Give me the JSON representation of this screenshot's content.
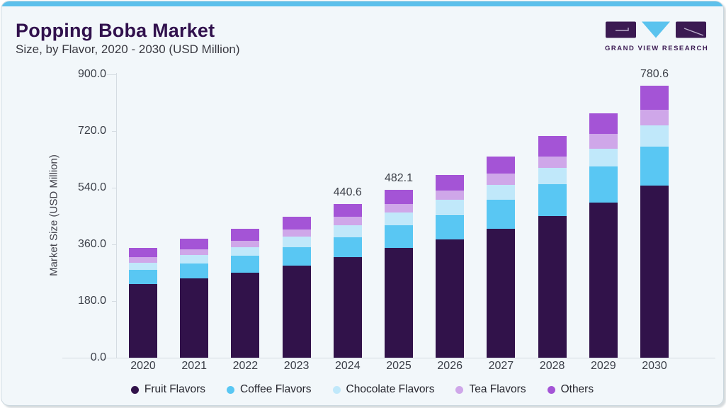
{
  "header": {
    "title": "Popping Boba Market",
    "subtitle": "Size, by Flavor, 2020 - 2030 (USD Million)",
    "logo_text": "GRAND VIEW RESEARCH"
  },
  "colors": {
    "accent_strip": "#5cc0eb",
    "card_bg": "#f2f7fa",
    "title_text": "#31114d",
    "body_text": "#3b3f48",
    "axis_line": "#d5dce2",
    "logo_purple": "#3b1a52",
    "logo_blue": "#5ac3ee"
  },
  "chart_data": {
    "type": "bar",
    "stacked": true,
    "title": "Popping Boba Market Size, by Flavor, 2020 - 2030 (USD Million)",
    "xlabel": "",
    "ylabel": "Market Size (USD Million)",
    "ylim": [
      0,
      900
    ],
    "y_ticks": [
      0,
      180,
      360,
      540,
      720,
      900
    ],
    "y_tick_labels": [
      "0.0",
      "180.0",
      "360.0",
      "540.0",
      "720.0",
      "900.0"
    ],
    "grid": false,
    "legend_position": "bottom",
    "categories": [
      "2020",
      "2021",
      "2022",
      "2023",
      "2024",
      "2025",
      "2026",
      "2027",
      "2028",
      "2029",
      "2030"
    ],
    "series": [
      {
        "name": "Fruit Flavors",
        "color": "#31124a",
        "values": [
          210.6,
          227.5,
          243.8,
          264.1,
          288.6,
          314.6,
          339.4,
          370.8,
          406.6,
          446.1,
          494.8
        ]
      },
      {
        "name": "Coffee Flavors",
        "color": "#59c7f3",
        "values": [
          42.1,
          42.1,
          48.2,
          52.9,
          57.0,
          65.7,
          72.6,
          82.6,
          91.6,
          103.8,
          112.5
        ]
      },
      {
        "name": "Chocolate Flavors",
        "color": "#c0e8fa",
        "values": [
          20.4,
          25.8,
          25.0,
          30.5,
          34.0,
          37.5,
          42.1,
          42.5,
          47.6,
          50.9,
          60.7
        ]
      },
      {
        "name": "Tea Flavors",
        "color": "#cfa7e9",
        "values": [
          14.9,
          16.3,
          18.3,
          20.4,
          25.8,
          24.0,
          26.0,
          32.2,
          32.6,
          41.9,
          45.0
        ]
      },
      {
        "name": "Others",
        "color": "#a454d6",
        "values": [
          27.8,
          30.5,
          34.6,
          36.0,
          35.2,
          40.3,
          45.3,
          48.8,
          57.6,
          59.0,
          67.6
        ]
      }
    ],
    "totals": [
      315.8,
      342.2,
      369.9,
      403.9,
      440.6,
      482.1,
      525.4,
      576.9,
      636.0,
      701.7,
      780.6
    ],
    "total_labels": [
      null,
      null,
      null,
      null,
      "440.6",
      "482.1",
      null,
      null,
      null,
      null,
      "780.6"
    ]
  }
}
